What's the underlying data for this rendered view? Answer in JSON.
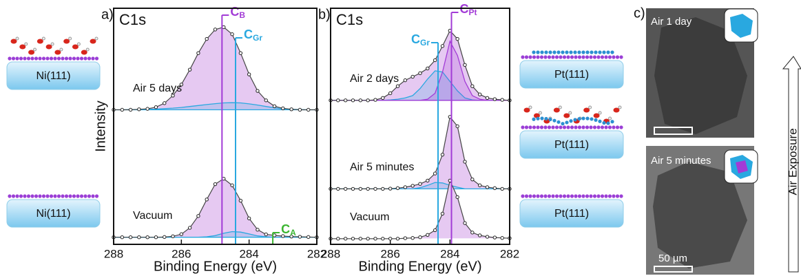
{
  "chart_data": [
    {
      "type": "line",
      "panel_label": "a)",
      "title": "C1s",
      "x_label": "Binding Energy (eV)",
      "y_label": "Intensity",
      "xlim": [
        288,
        282
      ],
      "xticks": [
        288,
        286,
        284,
        282
      ],
      "ylim": [
        0,
        10
      ],
      "x": [
        288,
        287.75,
        287.5,
        287.25,
        287,
        286.75,
        286.5,
        286.25,
        286,
        285.75,
        285.5,
        285.25,
        285,
        284.75,
        284.5,
        284.25,
        284,
        283.75,
        283.5,
        283.25,
        283,
        282.75,
        282.5,
        282.25,
        282
      ],
      "spectra": [
        {
          "name": "Air 5 days",
          "values": [
            5.7,
            5.7,
            5.7,
            5.72,
            5.74,
            5.81,
            5.98,
            6.3,
            6.77,
            7.4,
            8.1,
            8.7,
            9.1,
            9.2,
            8.9,
            8.1,
            7.2,
            6.5,
            6.1,
            5.85,
            5.76,
            5.72,
            5.7,
            5.7,
            5.7
          ],
          "components": [
            {
              "color": "#29a8e0",
              "values": [
                5.7,
                5.7,
                5.71,
                5.71,
                5.72,
                5.73,
                5.75,
                5.77,
                5.8,
                5.84,
                5.88,
                5.92,
                5.96,
                5.99,
                6.0,
                5.99,
                5.95,
                5.9,
                5.84,
                5.78,
                5.74,
                5.72,
                5.71,
                5.7,
                5.7
              ]
            }
          ]
        },
        {
          "name": "Vacuum",
          "values": [
            0.3,
            0.3,
            0.3,
            0.3,
            0.3,
            0.3,
            0.31,
            0.34,
            0.43,
            0.7,
            1.2,
            1.9,
            2.55,
            2.78,
            2.5,
            1.85,
            1.1,
            0.62,
            0.42,
            0.38,
            0.35,
            0.33,
            0.32,
            0.31,
            0.3
          ],
          "components": [
            {
              "color": "#29a8e0",
              "values": [
                0.3,
                0.3,
                0.3,
                0.3,
                0.3,
                0.3,
                0.3,
                0.3,
                0.3,
                0.3,
                0.3,
                0.32,
                0.37,
                0.47,
                0.54,
                0.52,
                0.44,
                0.36,
                0.32,
                0.3,
                0.3,
                0.3,
                0.3,
                0.3,
                0.3
              ]
            }
          ]
        }
      ],
      "envelope_fill": "#e6c9f2",
      "annotations": [
        {
          "text": "C",
          "sub": "B",
          "x": 284.8,
          "color": "#a23bd6"
        },
        {
          "text": "C",
          "sub": "Gr",
          "x": 284.4,
          "color": "#29a8e0"
        },
        {
          "text": "C",
          "sub": "A",
          "x": 283.3,
          "color": "#3cb531"
        }
      ]
    },
    {
      "type": "line",
      "panel_label": "b)",
      "title": "C1s",
      "x_label": "Binding Energy (eV)",
      "xlim": [
        288,
        282
      ],
      "xticks": [
        288,
        286,
        284,
        282
      ],
      "ylim": [
        0,
        10
      ],
      "x": [
        288,
        287.75,
        287.5,
        287.25,
        287,
        286.75,
        286.5,
        286.25,
        286,
        285.75,
        285.5,
        285.25,
        285,
        284.75,
        284.5,
        284.25,
        284,
        283.75,
        283.5,
        283.25,
        283,
        282.75,
        282.5,
        282.25,
        282
      ],
      "spectra": [
        {
          "name": "Air 2 days",
          "values": [
            6.1,
            6.1,
            6.1,
            6.1,
            6.1,
            6.1,
            6.12,
            6.2,
            6.4,
            6.7,
            6.95,
            7.1,
            7.25,
            7.45,
            7.8,
            8.4,
            9.05,
            8.7,
            7.6,
            6.7,
            6.35,
            6.2,
            6.15,
            6.12,
            6.1
          ],
          "components": [
            {
              "color": "#29a8e0",
              "values": [
                6.1,
                6.1,
                6.1,
                6.1,
                6.1,
                6.1,
                6.1,
                6.1,
                6.12,
                6.15,
                6.2,
                6.3,
                6.6,
                7.0,
                7.35,
                7.3,
                6.9,
                6.5,
                6.2,
                6.12,
                6.1,
                6.1,
                6.1,
                6.1,
                6.1
              ]
            },
            {
              "color": "#a23bd6",
              "values": [
                6.1,
                6.1,
                6.1,
                6.1,
                6.1,
                6.1,
                6.1,
                6.1,
                6.1,
                6.1,
                6.1,
                6.1,
                6.1,
                6.15,
                6.4,
                7.3,
                8.6,
                8.0,
                6.9,
                6.3,
                6.15,
                6.1,
                6.1,
                6.1,
                6.1
              ]
            }
          ]
        },
        {
          "name": "Air 5 minutes",
          "values": [
            2.35,
            2.35,
            2.35,
            2.35,
            2.35,
            2.35,
            2.35,
            2.35,
            2.36,
            2.38,
            2.42,
            2.48,
            2.56,
            2.7,
            3.0,
            3.8,
            5.4,
            5.0,
            3.5,
            2.75,
            2.5,
            2.42,
            2.38,
            2.35,
            2.35
          ],
          "components": [
            {
              "color": "#29a8e0",
              "values": [
                2.35,
                2.35,
                2.35,
                2.35,
                2.35,
                2.35,
                2.35,
                2.35,
                2.35,
                2.35,
                2.35,
                2.35,
                2.4,
                2.5,
                2.62,
                2.6,
                2.5,
                2.42,
                2.35,
                2.35,
                2.35,
                2.35,
                2.35,
                2.35,
                2.35
              ]
            }
          ]
        },
        {
          "name": "Vacuum",
          "values": [
            0.24,
            0.24,
            0.24,
            0.24,
            0.24,
            0.24,
            0.24,
            0.24,
            0.24,
            0.24,
            0.26,
            0.27,
            0.3,
            0.4,
            0.6,
            1.3,
            2.7,
            2.0,
            0.9,
            0.5,
            0.38,
            0.32,
            0.29,
            0.27,
            0.26
          ],
          "components": []
        }
      ],
      "envelope_fill": "#e6c9f2",
      "annotations": [
        {
          "text": "C",
          "sub": "Pt",
          "x": 283.95,
          "color": "#a23bd6"
        },
        {
          "text": "C",
          "sub": "Gr",
          "x": 284.4,
          "color": "#29a8e0"
        }
      ]
    }
  ],
  "schematics": {
    "left": [
      "Ni(111)",
      "Ni(111)"
    ],
    "right": [
      "Pt(111)",
      "Pt(111)",
      "Pt(111)"
    ]
  },
  "panel_c": {
    "label": "c)",
    "images": [
      {
        "caption": "Air 1 day"
      },
      {
        "caption": "Air 5 minutes",
        "scale_bar": "50 µm"
      }
    ],
    "arrow_label": "Air Exposure"
  }
}
